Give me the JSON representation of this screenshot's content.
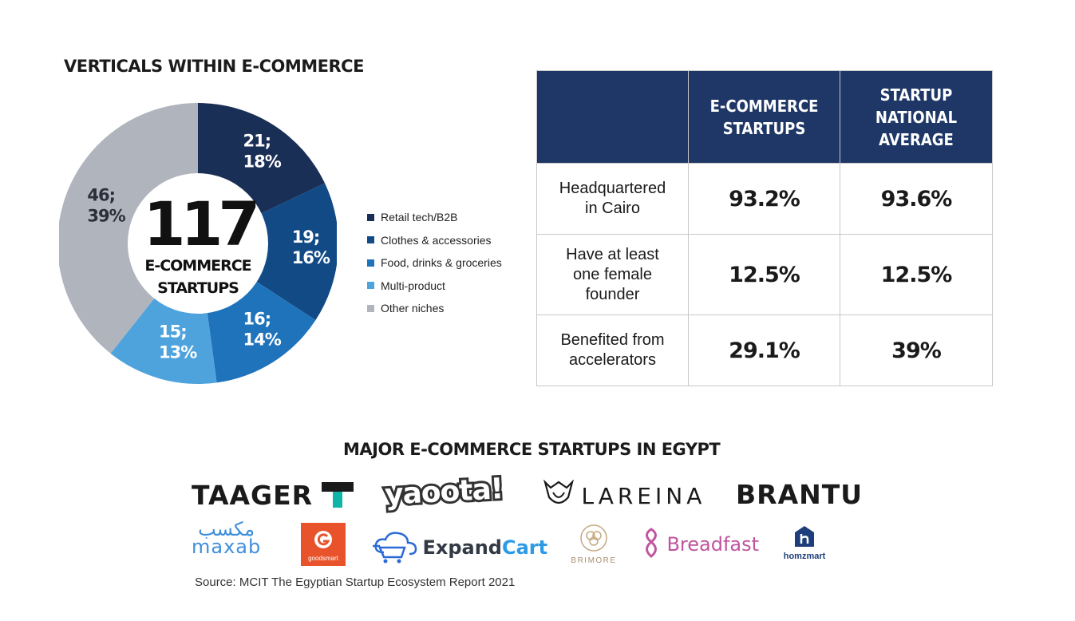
{
  "donut_title": "VERTICALS WITHIN E-COMMERCE",
  "center": {
    "number": "117",
    "line1": "E-COMMERCE",
    "line2": "STARTUPS"
  },
  "chart_data": {
    "type": "pie",
    "title": "VERTICALS WITHIN E-COMMERCE",
    "donut": true,
    "total": 117,
    "slices": [
      {
        "name": "Retail tech/B2B",
        "value": 21,
        "percent": 18,
        "label_line1": "21;",
        "label_line2": "18%",
        "color": "#1a2f55"
      },
      {
        "name": "Clothes & accessories",
        "value": 19,
        "percent": 16,
        "label_line1": "19;",
        "label_line2": "16%",
        "color": "#124a86"
      },
      {
        "name": "Food, drinks & groceries",
        "value": 16,
        "percent": 14,
        "label_line1": "16;",
        "label_line2": "14%",
        "color": "#1f73bb"
      },
      {
        "name": "Multi-product",
        "value": 15,
        "percent": 13,
        "label_line1": "15;",
        "label_line2": "13%",
        "color": "#4fa3dd"
      },
      {
        "name": "Other niches",
        "value": 46,
        "percent": 39,
        "label_line1": "46;",
        "label_line2": "39%",
        "color": "#b0b4bd"
      }
    ],
    "legend_position": "right"
  },
  "table": {
    "col1_header_line1": "E-COMMERCE",
    "col1_header_line2": "STARTUPS",
    "col2_header_line1": "STARTUP NATIONAL",
    "col2_header_line2": "AVERAGE",
    "rows": [
      {
        "label_line1": "Headquartered",
        "label_line2": "in Cairo",
        "label_line3": "",
        "ecommerce": "93.2%",
        "national": "93.6%"
      },
      {
        "label_line1": "Have at least",
        "label_line2": "one female",
        "label_line3": "founder",
        "ecommerce": "12.5%",
        "national": "12.5%"
      },
      {
        "label_line1": "Benefited from",
        "label_line2": "accelerators",
        "label_line3": "",
        "ecommerce": "29.1%",
        "national": "39%"
      }
    ]
  },
  "logos_title": "MAJOR E-COMMERCE STARTUPS IN EGYPT",
  "logos": {
    "taager": "TAAGER",
    "yaoota": "yaoota!",
    "lareina": "LAREINA",
    "brantu": "BRANTU",
    "maxab_ar": "مكسب",
    "maxab": "maxab",
    "goodsmart": "goodsmart",
    "expandcart_a": "Expand",
    "expandcart_b": "Cart",
    "brimore": "BRIMORE",
    "breadfast": "Breadfast",
    "homzmart": "homzmart"
  },
  "colors": {
    "navy": "#1e3766",
    "brand_teal": "#0fb5a8"
  },
  "source": "Source: MCIT The Egyptian Startup Ecosystem Report 2021"
}
